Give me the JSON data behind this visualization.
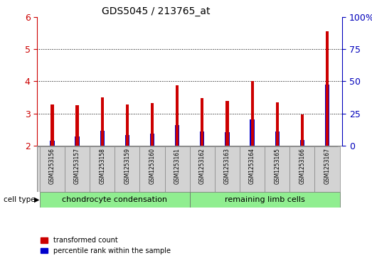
{
  "title": "GDS5045 / 213765_at",
  "samples": [
    "GSM1253156",
    "GSM1253157",
    "GSM1253158",
    "GSM1253159",
    "GSM1253160",
    "GSM1253161",
    "GSM1253162",
    "GSM1253163",
    "GSM1253164",
    "GSM1253165",
    "GSM1253166",
    "GSM1253167"
  ],
  "transformed_count": [
    3.28,
    3.25,
    3.5,
    3.28,
    3.32,
    3.87,
    3.47,
    3.38,
    4.0,
    3.35,
    2.97,
    5.55
  ],
  "percentile_rank_left": [
    2.15,
    2.28,
    2.47,
    2.33,
    2.37,
    2.65,
    2.44,
    2.42,
    2.82,
    2.44,
    2.17,
    3.89
  ],
  "y_min": 2.0,
  "y_max": 6.0,
  "y_ticks_left": [
    2,
    3,
    4,
    5,
    6
  ],
  "y_ticks_right": [
    0,
    25,
    50,
    75,
    100
  ],
  "cell_type_groups": [
    {
      "label": "chondrocyte condensation",
      "start": 0,
      "end": 5,
      "color": "#90ee90"
    },
    {
      "label": "remaining limb cells",
      "start": 6,
      "end": 11,
      "color": "#90ee90"
    }
  ],
  "cell_type_label": "cell type",
  "bar_width": 0.12,
  "blue_bar_width": 0.18,
  "red_color": "#cc0000",
  "blue_color": "#0000cc",
  "bg_color": "#d3d3d3",
  "plot_bg_color": "#ffffff",
  "legend_red": "transformed count",
  "legend_blue": "percentile rank within the sample",
  "left_tick_color": "#cc0000",
  "right_tick_color": "#0000bb",
  "grid_color": "#000000"
}
